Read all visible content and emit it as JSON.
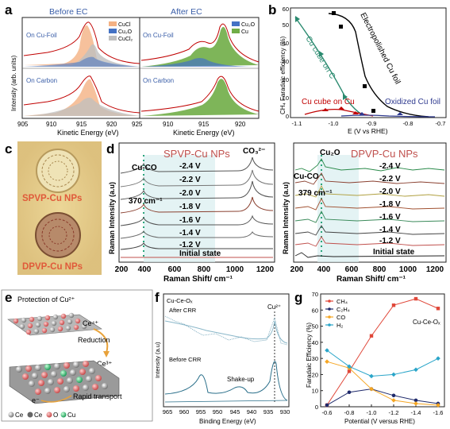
{
  "panels": {
    "a": "a",
    "b": "b",
    "c": "c",
    "d": "d",
    "e": "e",
    "f": "f",
    "g": "g"
  },
  "a": {
    "title_left": "Before EC",
    "title_right": "After EC",
    "legend_left": [
      "CuCl",
      "Cu₂O",
      "CuCl₂"
    ],
    "legend_right": [
      "Cu₂O",
      "Cu"
    ],
    "sub_top": "On Cu-Foil",
    "sub_bottom": "On Carbon",
    "ylabel": "Intensity (arb. units)",
    "xlabel": "Kinetic Energy (eV)",
    "xticks_left": [
      "905",
      "910",
      "915",
      "920",
      "925"
    ],
    "xticks_right": [
      "910",
      "915",
      "920"
    ],
    "colors": {
      "CuCl": "#f4b183",
      "Cu2O": "#4472c4",
      "CuCl2": "#bfbfbf",
      "Cu": "#70ad47",
      "fit": "#c00000"
    }
  },
  "b": {
    "ylabel": "CH₄ Faradaic efficiency (%)",
    "xlabel": "E (V vs RHE)",
    "xticks": [
      "-1.1",
      "-1.0",
      "-0.9",
      "-0.8",
      "-0.7"
    ],
    "yticks": [
      "0",
      "10",
      "20",
      "30",
      "40",
      "50",
      "60"
    ],
    "labels": [
      "Electropolished Cu foil",
      "Cu cube on C",
      "Cu cube on Cu",
      "Oxidized Cu foil"
    ]
  },
  "c": {
    "label1": "SPVP-Cu NPs",
    "label2": "DPVP-Cu NPs"
  },
  "d": {
    "title_left": "SPVP-Cu NPs",
    "title_right": "DPVP-Cu NPs",
    "cuco": "Cu-CO",
    "co3": "CO₃²⁻",
    "cu2o": "Cu₂O",
    "peak_left": "370 cm⁻¹",
    "peak_right": "379 cm⁻¹",
    "ylabel": "Raman Intensity (a.u)",
    "xlabel": "Raman Shift/ cm⁻¹",
    "xticks": [
      "200",
      "400",
      "600",
      "800",
      "1000",
      "1200"
    ],
    "potentials": [
      "-2.4 V",
      "-2.2 V",
      "-2.0 V",
      "-1.8 V",
      "-1.6 V",
      "-1.4 V",
      "-1.2 V",
      "Initial state"
    ]
  },
  "e": {
    "title": "Protection of Cu²⁺",
    "ce4": "Ce⁴⁺",
    "reduction": "Reduction",
    "ce3": "Ce³⁺",
    "electron": "e⁻",
    "rapid": "Rapid transport",
    "legend": [
      "Ce",
      "Ce",
      "O",
      "Cu"
    ]
  },
  "f": {
    "title": "Cu-Ce-Oₓ",
    "after": "After CRR",
    "before": "Before CRR",
    "cu2": "Cu²⁺",
    "shake": "Shake-up",
    "ylabel": "Intensity (a.u)",
    "xlabel": "Binding Energy (eV)",
    "xticks": [
      "965",
      "960",
      "955",
      "950",
      "945",
      "940",
      "935",
      "930"
    ]
  },
  "chart_data": [
    {
      "type": "line",
      "title": "",
      "inner_label": "Cu-Ce-Oₓ",
      "xlabel": "Potential (V versus RHE)",
      "ylabel": "Faradaic Efficiency (%)",
      "x": [
        -0.6,
        -0.8,
        -1.0,
        -1.2,
        -1.4,
        -1.6
      ],
      "xlim": [
        -0.6,
        -1.6
      ],
      "ylim": [
        0,
        70
      ],
      "xticks": [
        "-0.6",
        "-0.8",
        "-1.0",
        "-1.2",
        "-1.4",
        "-1.6"
      ],
      "yticks": [
        "0",
        "10",
        "20",
        "30",
        "40",
        "50",
        "60",
        "70"
      ],
      "legend_position": "top-left",
      "series": [
        {
          "name": "CH₄",
          "color": "#e0483a",
          "marker": "square",
          "values": [
            1,
            22,
            44,
            63,
            67,
            61
          ]
        },
        {
          "name": "C₂H₄",
          "color": "#1f2a6b",
          "marker": "circle",
          "values": [
            1,
            9,
            11,
            7,
            4,
            2
          ]
        },
        {
          "name": "CO",
          "color": "#f5a623",
          "marker": "diamond",
          "values": [
            28,
            24,
            11,
            4,
            2,
            1
          ]
        },
        {
          "name": "H₂",
          "color": "#2aa5c9",
          "marker": "diamond",
          "values": [
            35,
            25,
            19,
            20,
            23,
            30
          ]
        }
      ]
    },
    {
      "type": "line",
      "title": "",
      "xlabel": "E (V vs RHE)",
      "ylabel": "CH₄ Faradaic efficiency (%)",
      "xlim": [
        -1.15,
        -0.7
      ],
      "ylim": [
        0,
        60
      ],
      "series": [
        {
          "name": "Electropolished Cu foil",
          "color": "#000000",
          "x": [
            -1.02,
            -0.97,
            -0.93,
            -0.89,
            -0.85
          ],
          "values": [
            57,
            51,
            16,
            4,
            1
          ]
        },
        {
          "name": "Cu cube on C",
          "color": "#2a8a6f",
          "x": [
            -1.12,
            -1.05,
            -0.98
          ],
          "values": [
            52,
            30,
            8
          ]
        },
        {
          "name": "Cu cube on Cu",
          "color": "#c00000",
          "x": [
            -1.08,
            -1.02,
            -0.95,
            -0.9
          ],
          "values": [
            2,
            4,
            3,
            1
          ]
        },
        {
          "name": "Oxidized Cu foil",
          "color": "#2f3a8f",
          "x": [
            -0.98,
            -0.93,
            -0.86
          ],
          "values": [
            1,
            1,
            1
          ]
        }
      ]
    }
  ]
}
